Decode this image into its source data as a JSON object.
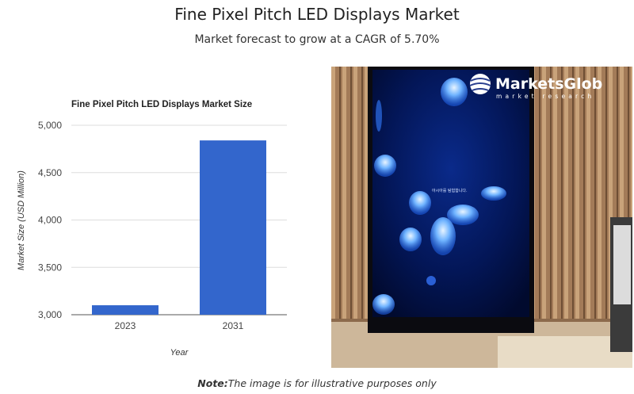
{
  "header": {
    "title": "Fine Pixel Pitch LED Displays Market",
    "subtitle": "Market forecast to grow at a CAGR of 5.70%"
  },
  "chart_data": {
    "type": "bar",
    "title": "Fine Pixel Pitch LED Displays Market Size",
    "categories": [
      "2023",
      "2031"
    ],
    "values": [
      3100,
      4840
    ],
    "xlabel": "Year",
    "ylabel": "Market Size (USD Million)",
    "ylim": [
      3000,
      5000
    ],
    "yticks": [
      "3,000",
      "3,500",
      "4,000",
      "4,500",
      "5,000"
    ],
    "bar_color": "#3366cc",
    "grid": true
  },
  "image": {
    "logo_text": "MarketsGlob",
    "logo_subtext": "market research",
    "screen_text": "아시아를 탐험합니다."
  },
  "note": {
    "label": "Note:",
    "text": "The image is for illustrative purposes only"
  }
}
